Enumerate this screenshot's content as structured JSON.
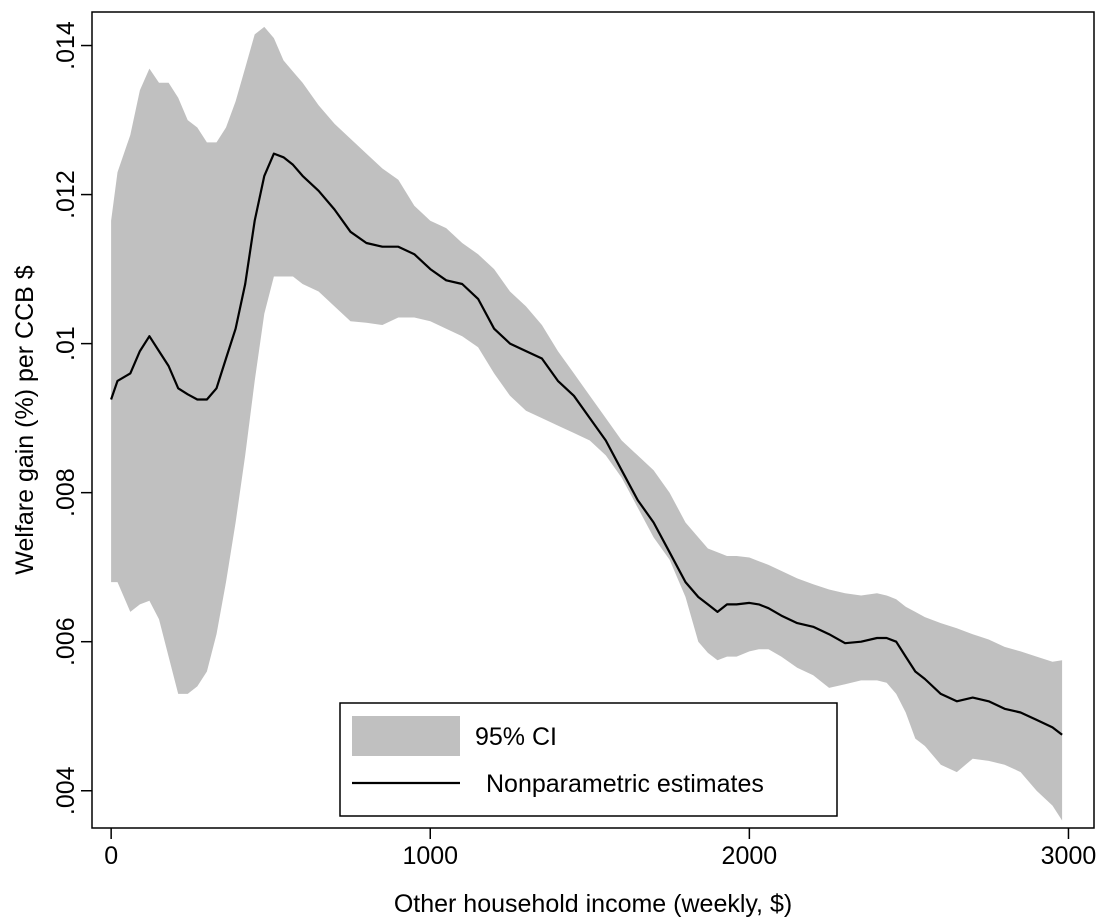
{
  "chart_data": {
    "type": "area",
    "xlabel": "Other household income (weekly, $)",
    "ylabel": "Welfare gain (%) per CCB $",
    "xlim": [
      -60,
      3080
    ],
    "ylim": [
      0.0035,
      0.01445
    ],
    "xticks": [
      0,
      1000,
      2000,
      3000
    ],
    "xtick_labels": [
      "0",
      "1000",
      "2000",
      "3000"
    ],
    "yticks": [
      0.004,
      0.006,
      0.008,
      0.01,
      0.012,
      0.014
    ],
    "ytick_labels": [
      ".004",
      ".006",
      ".008",
      ".01",
      ".012",
      ".014"
    ],
    "grid": false,
    "legend_position": "bottom-center",
    "colors": {
      "ci_fill": "#c0c0c0",
      "estimate_line": "#000000"
    },
    "x": [
      0,
      20,
      60,
      90,
      120,
      150,
      180,
      210,
      240,
      270,
      300,
      330,
      360,
      390,
      420,
      450,
      480,
      510,
      540,
      570,
      600,
      650,
      700,
      750,
      800,
      850,
      900,
      950,
      1000,
      1050,
      1100,
      1150,
      1200,
      1250,
      1300,
      1350,
      1400,
      1450,
      1500,
      1550,
      1600,
      1650,
      1700,
      1750,
      1800,
      1840,
      1870,
      1900,
      1930,
      1960,
      2000,
      2030,
      2060,
      2100,
      2150,
      2200,
      2250,
      2300,
      2350,
      2400,
      2430,
      2460,
      2490,
      2520,
      2550,
      2600,
      2650,
      2700,
      2750,
      2800,
      2850,
      2900,
      2950,
      2980
    ],
    "series": [
      {
        "name": "95% CI",
        "kind": "band",
        "upper": [
          0.01165,
          0.0123,
          0.0128,
          0.0134,
          0.01369,
          0.0135,
          0.0135,
          0.0133,
          0.013,
          0.0129,
          0.0127,
          0.0127,
          0.0129,
          0.01325,
          0.0137,
          0.01415,
          0.01425,
          0.0141,
          0.0138,
          0.01365,
          0.0135,
          0.0132,
          0.01295,
          0.01275,
          0.01255,
          0.01235,
          0.0122,
          0.01185,
          0.01165,
          0.01155,
          0.01135,
          0.0112,
          0.011,
          0.0107,
          0.0105,
          0.01025,
          0.0099,
          0.0096,
          0.0093,
          0.009,
          0.0087,
          0.0085,
          0.0083,
          0.008,
          0.0076,
          0.0074,
          0.00725,
          0.0072,
          0.00715,
          0.00715,
          0.00713,
          0.00708,
          0.00703,
          0.00695,
          0.00685,
          0.00677,
          0.0067,
          0.00665,
          0.00662,
          0.00665,
          0.00662,
          0.00657,
          0.00647,
          0.0064,
          0.00633,
          0.00625,
          0.00618,
          0.0061,
          0.00603,
          0.00593,
          0.00587,
          0.0058,
          0.00573,
          0.00575
        ],
        "lower": [
          0.0068,
          0.0068,
          0.0064,
          0.0065,
          0.00655,
          0.0063,
          0.0058,
          0.0053,
          0.0053,
          0.0054,
          0.0056,
          0.0061,
          0.0068,
          0.0076,
          0.0085,
          0.0095,
          0.0104,
          0.0109,
          0.0109,
          0.0109,
          0.0108,
          0.0107,
          0.0105,
          0.0103,
          0.01028,
          0.01025,
          0.01035,
          0.01035,
          0.0103,
          0.0102,
          0.0101,
          0.00995,
          0.0096,
          0.0093,
          0.0091,
          0.009,
          0.0089,
          0.0088,
          0.0087,
          0.0085,
          0.0082,
          0.0078,
          0.0074,
          0.0071,
          0.0066,
          0.006,
          0.00585,
          0.00575,
          0.0058,
          0.0058,
          0.00587,
          0.0059,
          0.0059,
          0.0058,
          0.00565,
          0.00555,
          0.00538,
          0.00543,
          0.00548,
          0.00548,
          0.00545,
          0.0053,
          0.00505,
          0.0047,
          0.0046,
          0.00435,
          0.00425,
          0.00443,
          0.0044,
          0.00435,
          0.00425,
          0.004,
          0.0038,
          0.0036
        ]
      },
      {
        "name": "Nonparametric estimates",
        "kind": "line",
        "values": [
          0.00925,
          0.0095,
          0.0096,
          0.0099,
          0.0101,
          0.0099,
          0.0097,
          0.0094,
          0.00932,
          0.00925,
          0.00925,
          0.0094,
          0.0098,
          0.0102,
          0.0108,
          0.01165,
          0.01225,
          0.01255,
          0.0125,
          0.0124,
          0.01225,
          0.01205,
          0.0118,
          0.0115,
          0.01135,
          0.0113,
          0.0113,
          0.0112,
          0.011,
          0.01085,
          0.0108,
          0.0106,
          0.0102,
          0.01,
          0.0099,
          0.0098,
          0.0095,
          0.0093,
          0.009,
          0.0087,
          0.0083,
          0.0079,
          0.0076,
          0.0072,
          0.0068,
          0.0066,
          0.0065,
          0.0064,
          0.0065,
          0.0065,
          0.00652,
          0.0065,
          0.00645,
          0.00635,
          0.00625,
          0.0062,
          0.0061,
          0.00598,
          0.006,
          0.00605,
          0.00605,
          0.006,
          0.0058,
          0.0056,
          0.0055,
          0.0053,
          0.0052,
          0.00525,
          0.0052,
          0.0051,
          0.00505,
          0.00495,
          0.00485,
          0.00475
        ]
      }
    ]
  }
}
